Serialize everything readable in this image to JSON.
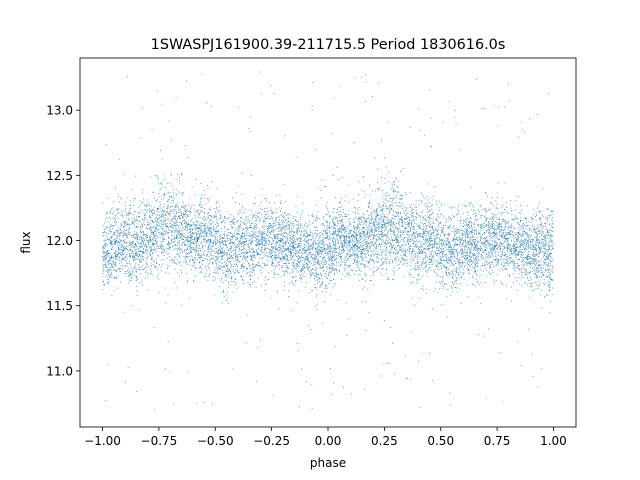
{
  "chart_data": {
    "type": "scatter",
    "title": "1SWASPJ161900.39-211715.5 Period 1830616.0s",
    "xlabel": "phase",
    "ylabel": "flux",
    "xlim": [
      -1.1,
      1.1
    ],
    "ylim": [
      10.57,
      13.4
    ],
    "x_ticks": [
      -1.0,
      -0.75,
      -0.5,
      -0.25,
      0.0,
      0.25,
      0.5,
      0.75,
      1.0
    ],
    "x_tick_labels": [
      "−1.00",
      "−0.75",
      "−0.50",
      "−0.25",
      "0.00",
      "0.25",
      "0.50",
      "0.75",
      "1.00"
    ],
    "y_ticks": [
      11.0,
      11.5,
      12.0,
      12.5,
      13.0
    ],
    "y_tick_labels": [
      "11.0",
      "11.5",
      "12.0",
      "12.5",
      "13.0"
    ],
    "point_color": "#1f77b4",
    "grid": false,
    "legend": "none",
    "phase_range": [
      -1.0,
      1.0
    ],
    "flux_core_range": [
      11.55,
      12.35
    ],
    "flux_outlier_range": [
      10.7,
      13.3
    ],
    "profile": [
      {
        "phase": -1.0,
        "mean": 11.9,
        "spread": 0.18
      },
      {
        "phase": -0.95,
        "mean": 11.95,
        "spread": 0.2
      },
      {
        "phase": -0.9,
        "mean": 12.0,
        "spread": 0.2
      },
      {
        "phase": -0.85,
        "mean": 11.98,
        "spread": 0.2
      },
      {
        "phase": -0.8,
        "mean": 12.02,
        "spread": 0.2
      },
      {
        "phase": -0.75,
        "mean": 12.05,
        "spread": 0.22
      },
      {
        "phase": -0.7,
        "mean": 12.1,
        "spread": 0.24
      },
      {
        "phase": -0.65,
        "mean": 12.08,
        "spread": 0.22
      },
      {
        "phase": -0.6,
        "mean": 12.0,
        "spread": 0.2
      },
      {
        "phase": -0.55,
        "mean": 12.05,
        "spread": 0.2
      },
      {
        "phase": -0.5,
        "mean": 11.98,
        "spread": 0.2
      },
      {
        "phase": -0.45,
        "mean": 11.9,
        "spread": 0.2
      },
      {
        "phase": -0.4,
        "mean": 11.95,
        "spread": 0.19
      },
      {
        "phase": -0.35,
        "mean": 11.98,
        "spread": 0.19
      },
      {
        "phase": -0.3,
        "mean": 12.0,
        "spread": 0.19
      },
      {
        "phase": -0.25,
        "mean": 12.0,
        "spread": 0.18
      },
      {
        "phase": -0.2,
        "mean": 11.98,
        "spread": 0.18
      },
      {
        "phase": -0.15,
        "mean": 11.95,
        "spread": 0.18
      },
      {
        "phase": -0.1,
        "mean": 11.92,
        "spread": 0.18
      },
      {
        "phase": -0.05,
        "mean": 11.9,
        "spread": 0.22
      },
      {
        "phase": 0.0,
        "mean": 11.95,
        "spread": 0.2
      },
      {
        "phase": 0.05,
        "mean": 12.0,
        "spread": 0.19
      },
      {
        "phase": 0.1,
        "mean": 11.98,
        "spread": 0.18
      },
      {
        "phase": 0.15,
        "mean": 11.98,
        "spread": 0.19
      },
      {
        "phase": 0.2,
        "mean": 12.02,
        "spread": 0.2
      },
      {
        "phase": 0.25,
        "mean": 12.08,
        "spread": 0.22
      },
      {
        "phase": 0.3,
        "mean": 12.1,
        "spread": 0.24
      },
      {
        "phase": 0.35,
        "mean": 12.05,
        "spread": 0.22
      },
      {
        "phase": 0.4,
        "mean": 12.0,
        "spread": 0.2
      },
      {
        "phase": 0.45,
        "mean": 12.02,
        "spread": 0.2
      },
      {
        "phase": 0.5,
        "mean": 11.95,
        "spread": 0.2
      },
      {
        "phase": 0.55,
        "mean": 11.9,
        "spread": 0.2
      },
      {
        "phase": 0.6,
        "mean": 11.95,
        "spread": 0.19
      },
      {
        "phase": 0.65,
        "mean": 11.98,
        "spread": 0.19
      },
      {
        "phase": 0.7,
        "mean": 12.0,
        "spread": 0.19
      },
      {
        "phase": 0.75,
        "mean": 12.0,
        "spread": 0.18
      },
      {
        "phase": 0.8,
        "mean": 11.98,
        "spread": 0.18
      },
      {
        "phase": 0.85,
        "mean": 11.95,
        "spread": 0.18
      },
      {
        "phase": 0.9,
        "mean": 11.92,
        "spread": 0.18
      },
      {
        "phase": 0.95,
        "mean": 11.9,
        "spread": 0.24
      },
      {
        "phase": 1.0,
        "mean": 11.95,
        "spread": 0.2
      }
    ]
  }
}
